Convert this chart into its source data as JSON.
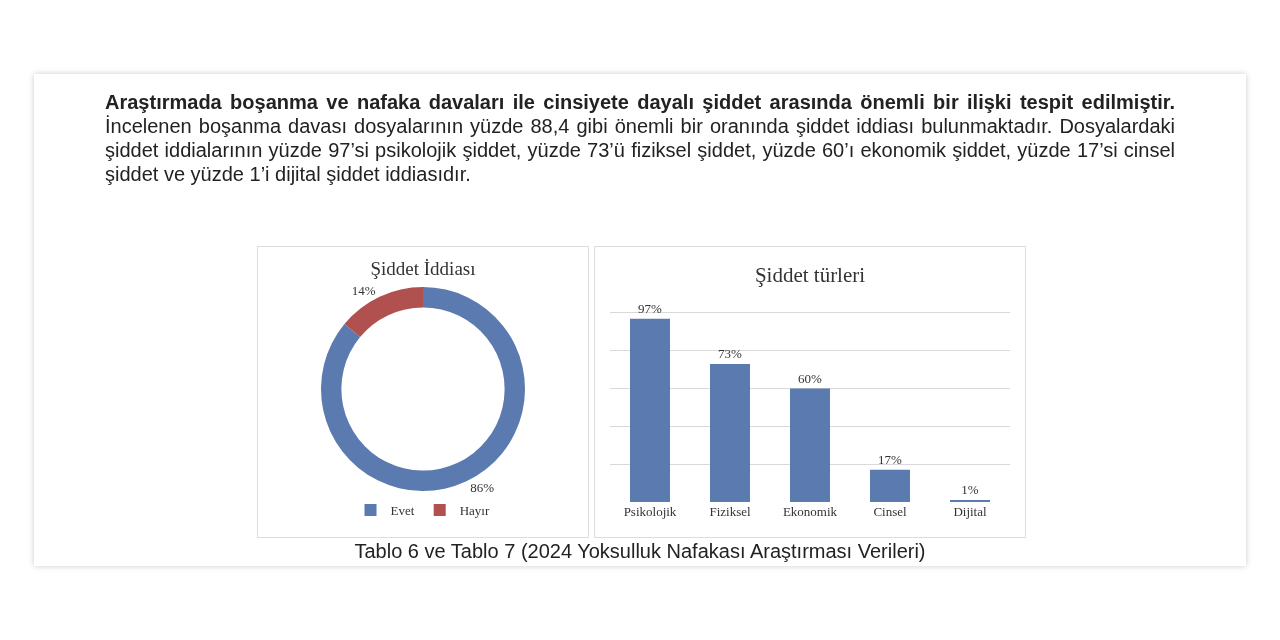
{
  "chart_data": [
    {
      "type": "other",
      "annotations": [
        "Araştırmada boşanma ve nafaka davaları ile cinsiyete dayalı şiddet arasında önemli bir ilişki tespit edilmiştir.",
        "İncelenen boşanma davası dosyalarının yüzde 88,4 gibi önemli bir oranında şiddet iddiası bulunmaktadır. Dosyalardaki şiddet iddialarının yüzde 97’si psikolojik şiddet, yüzde 73’ü fiziksel şiddet, yüzde 60’ı ekonomik şiddet, yüzde 17’si cinsel şiddet ve yüzde 1’i dijital şiddet iddiasıdır.",
        "Tablo 6 ve Tablo 7 (2024 Yoksulluk Nafakası Araştırması Verileri)"
      ]
    },
    {
      "type": "donut",
      "title": "Şiddet İddiası",
      "categories": [
        "Evet",
        "Hayır"
      ],
      "values": [
        86,
        14
      ],
      "colors": [
        "#5b7bb0",
        "#b0504f"
      ],
      "value_labels": [
        "86%",
        "14%"
      ],
      "legend": "bottom"
    },
    {
      "type": "bar",
      "title": "Şiddet türleri",
      "categories": [
        "Psikolojik",
        "Fiziksel",
        "Ekonomik",
        "Cinsel",
        "Dijital"
      ],
      "values": [
        97,
        73,
        60,
        17,
        1
      ],
      "color": "#5b7bb0",
      "value_labels": [
        "97%",
        "73%",
        "60%",
        "17%",
        "1%"
      ],
      "grid": "y",
      "tick_labels": "x"
    }
  ]
}
